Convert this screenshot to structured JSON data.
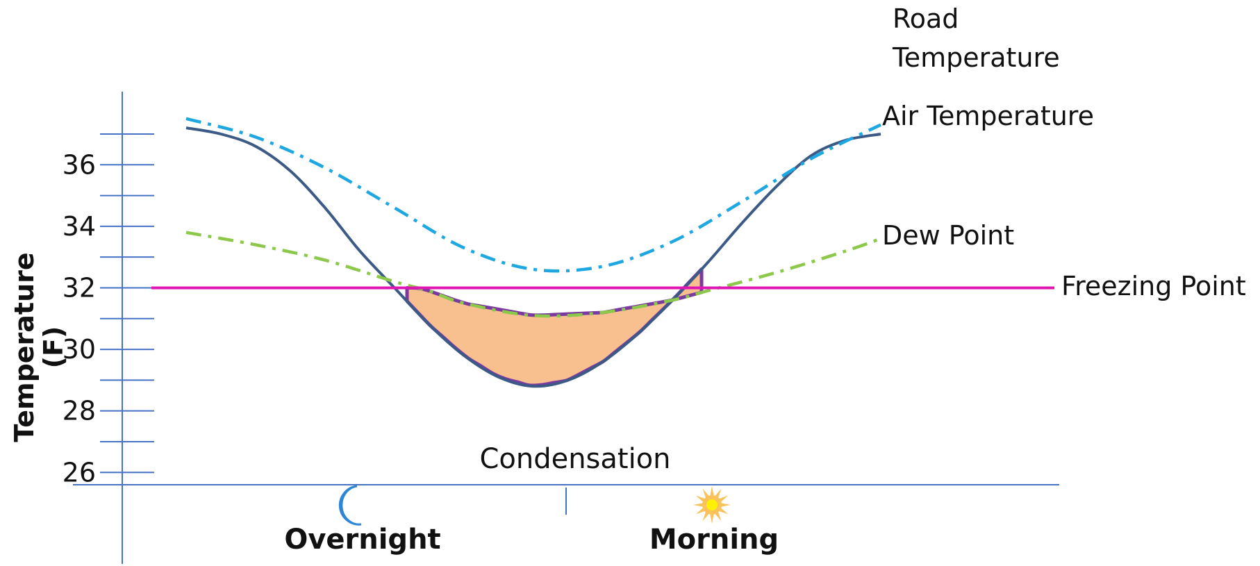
{
  "chart_data": {
    "type": "line",
    "title": "",
    "ylabel": "Temperature (F)",
    "xlabel": "",
    "ylim": [
      25.6,
      37.8
    ],
    "yticks": [
      26,
      28,
      30,
      32,
      34,
      36
    ],
    "grid": false,
    "x_periods": [
      {
        "label": "Overnight",
        "icon": "moon-icon"
      },
      {
        "label": "Morning",
        "icon": "sun-icon"
      }
    ],
    "series": [
      {
        "name": "Road Temperature",
        "style": "solid",
        "color": "#3b5a85",
        "x": [
          0,
          0.05,
          0.1,
          0.15,
          0.2,
          0.25,
          0.3,
          0.35,
          0.4,
          0.45,
          0.5,
          0.55,
          0.6,
          0.65,
          0.7,
          0.75,
          0.8,
          0.85,
          0.9,
          0.95,
          1
        ],
        "y": [
          37.2,
          37.0,
          36.6,
          35.8,
          34.6,
          33.2,
          32.0,
          30.8,
          29.8,
          29.1,
          28.8,
          29.0,
          29.6,
          30.5,
          31.6,
          32.8,
          34.1,
          35.3,
          36.3,
          36.8,
          37.0
        ]
      },
      {
        "name": "Air Temperature",
        "style": "dash-dot",
        "color": "#1ea7e1",
        "x": [
          0,
          0.1,
          0.2,
          0.3,
          0.4,
          0.5,
          0.6,
          0.7,
          0.8,
          0.9,
          1
        ],
        "y": [
          37.5,
          36.9,
          35.9,
          34.6,
          33.3,
          32.6,
          32.7,
          33.5,
          34.8,
          36.2,
          37.3
        ]
      },
      {
        "name": "Dew Point",
        "style": "dash-dot",
        "color": "#8cc94b",
        "x": [
          0,
          0.1,
          0.2,
          0.3,
          0.35,
          0.4,
          0.5,
          0.6,
          0.7,
          0.75,
          0.85,
          0.95,
          1
        ],
        "y": [
          33.8,
          33.4,
          32.9,
          32.2,
          31.9,
          31.5,
          31.1,
          31.2,
          31.6,
          31.9,
          32.5,
          33.2,
          33.6
        ]
      },
      {
        "name": "Freezing Point",
        "style": "solid",
        "color": "#e016b4",
        "x": [
          -0.05,
          1.25
        ],
        "y": [
          32,
          32
        ]
      }
    ],
    "annotations": [
      {
        "text": "Condensation",
        "fill": "#f8c08f",
        "outline": "#7a3aa0"
      }
    ]
  }
}
